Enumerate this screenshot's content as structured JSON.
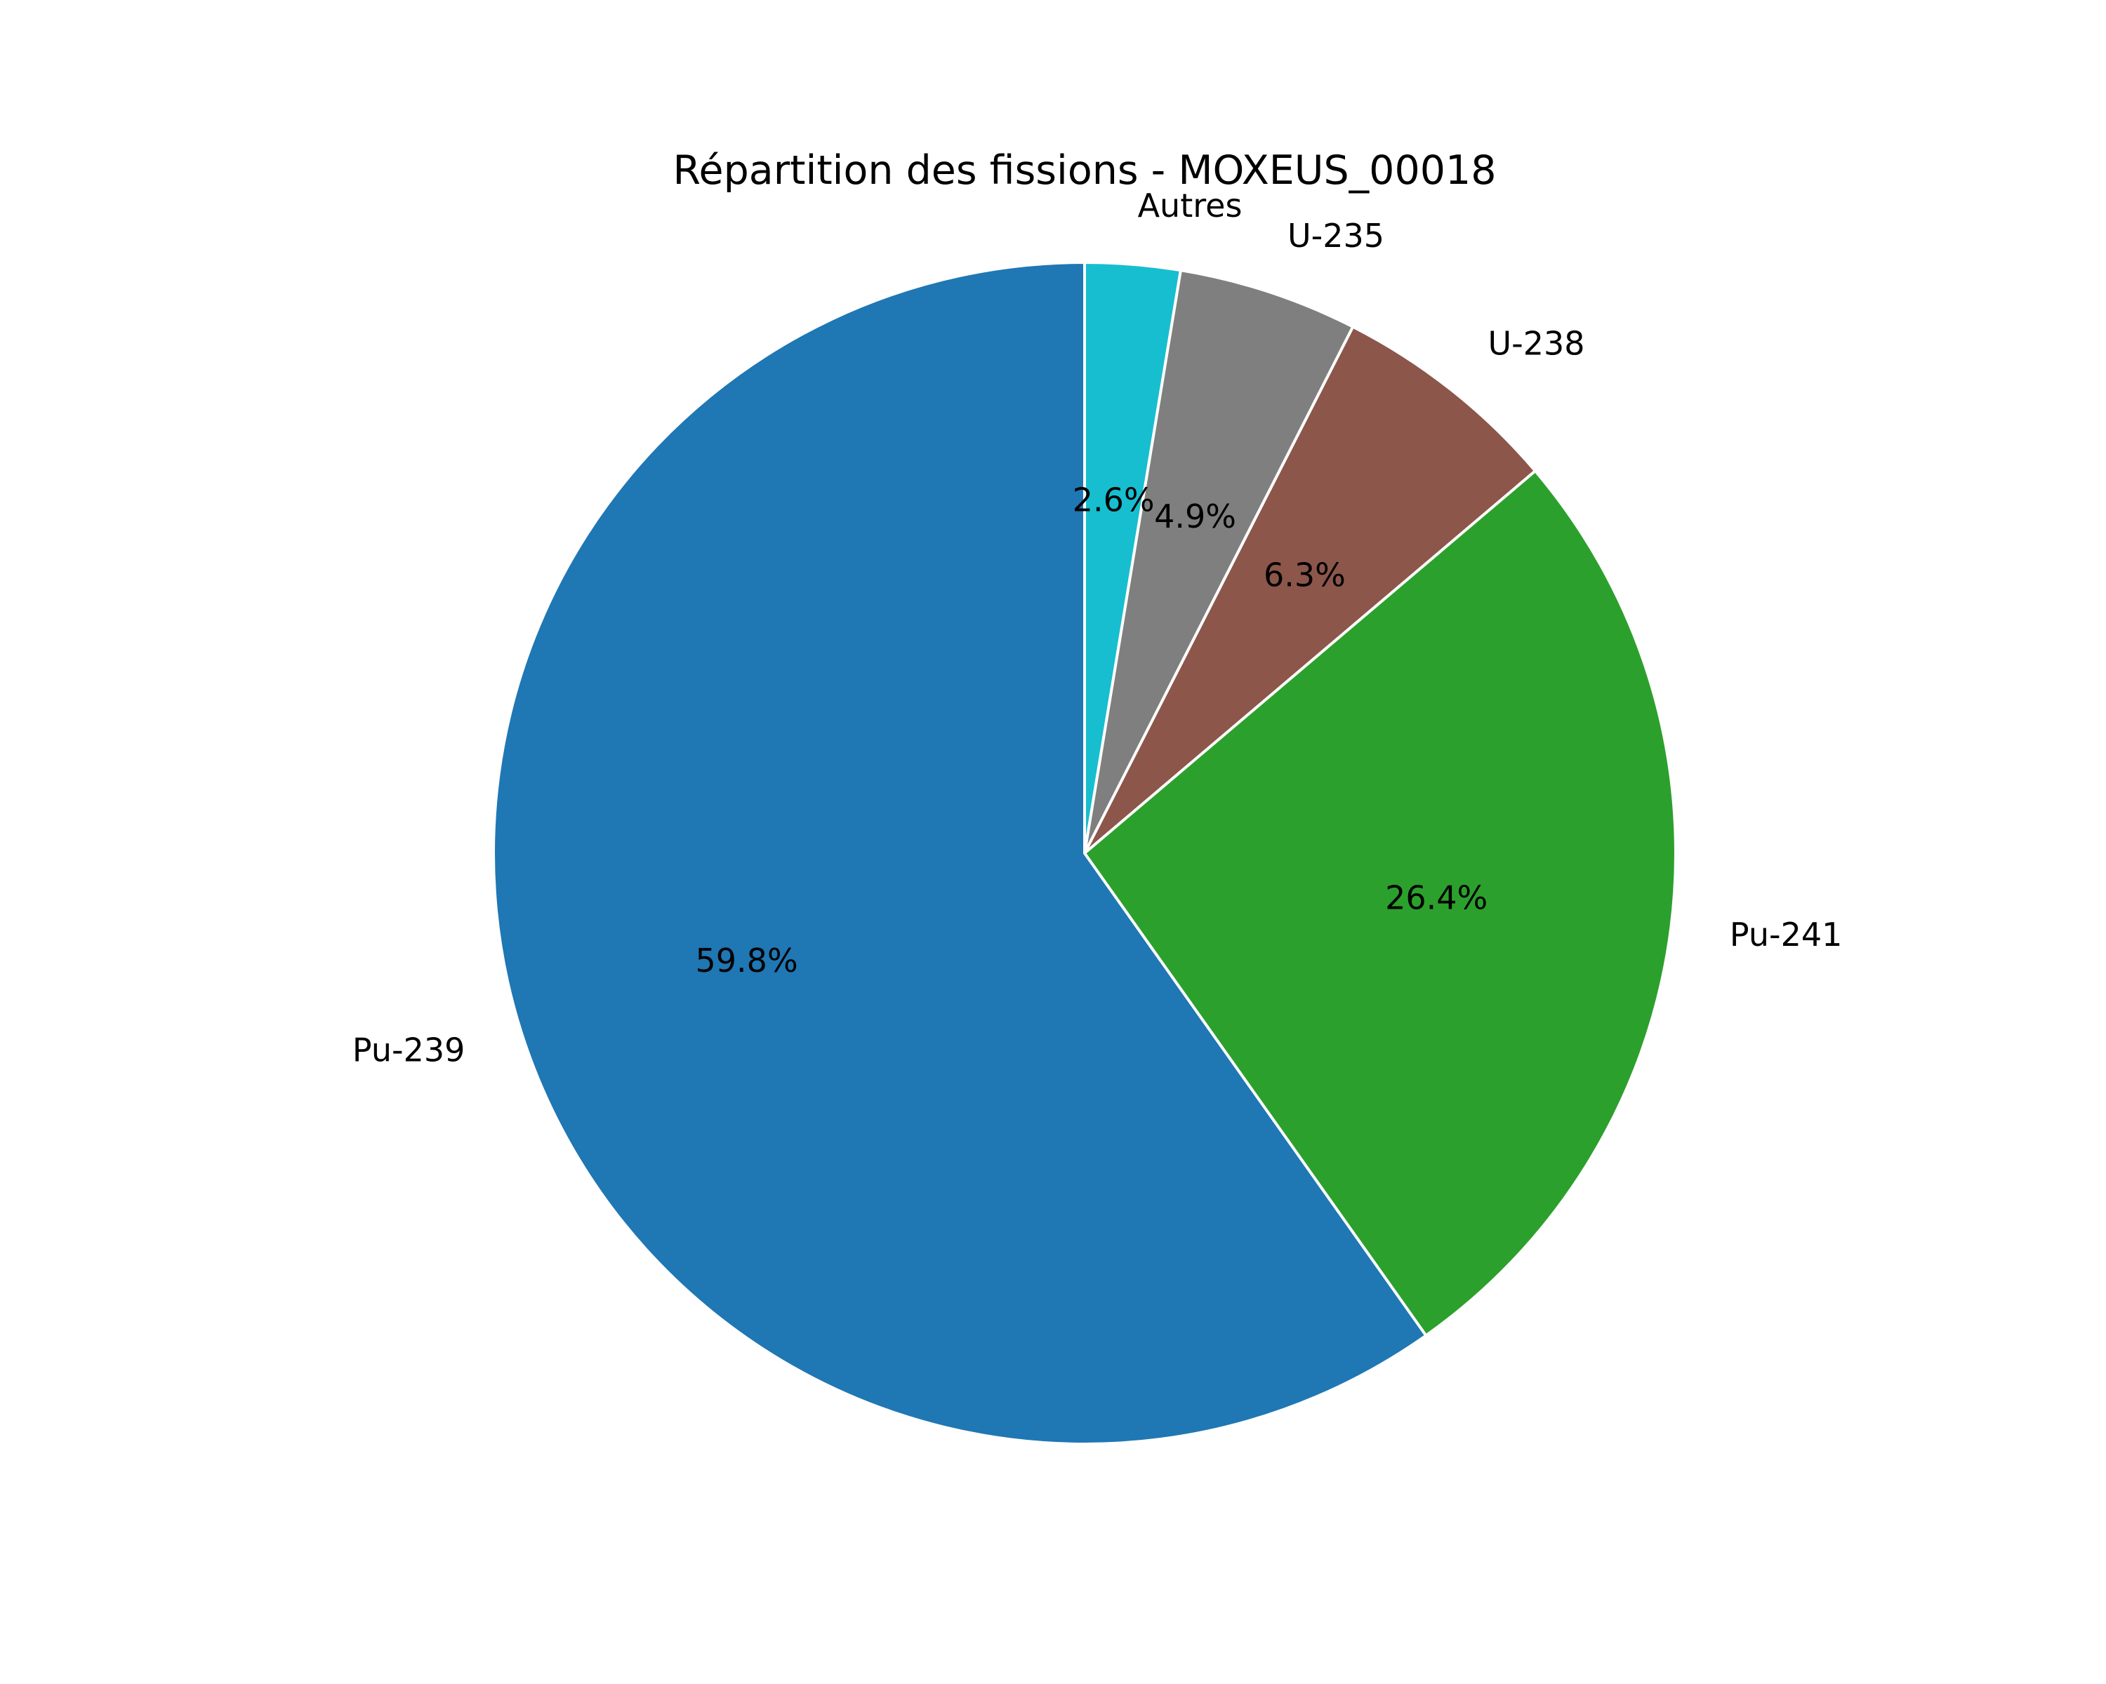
{
  "chart_data": {
    "type": "pie",
    "title": "Répartition des fissions - MOXEUS_00018",
    "start_angle_deg": 90,
    "direction": "clockwise",
    "slices": [
      {
        "label": "Autres",
        "value": 2.6,
        "pct_label": "2.6%",
        "color": "#17becf"
      },
      {
        "label": "U-235",
        "value": 4.9,
        "pct_label": "4.9%",
        "color": "#7f7f7f"
      },
      {
        "label": "U-238",
        "value": 6.3,
        "pct_label": "6.3%",
        "color": "#8c564b"
      },
      {
        "label": "Pu-241",
        "value": 26.4,
        "pct_label": "26.4%",
        "color": "#2ca02c"
      },
      {
        "label": "Pu-239",
        "value": 59.8,
        "pct_label": "59.8%",
        "color": "#1f77b4"
      }
    ],
    "edge_color": "#ffffff"
  }
}
